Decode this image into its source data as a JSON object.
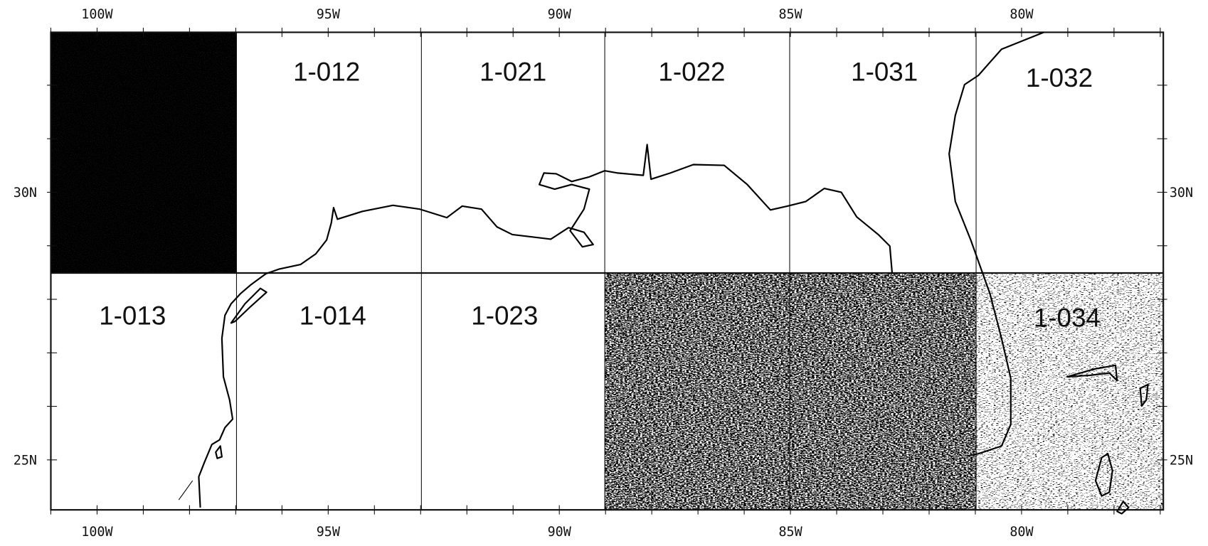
{
  "axes": {
    "top": [
      "100W",
      "95W",
      "90W",
      "85W",
      "80W"
    ],
    "bottom": [
      "100W",
      "95W",
      "90W",
      "85W",
      "80W"
    ],
    "left": [
      "30N",
      "25N"
    ],
    "right": [
      "30N",
      "25N"
    ]
  },
  "cells": [
    {
      "label": "1-012"
    },
    {
      "label": "1-021"
    },
    {
      "label": "1-022"
    },
    {
      "label": "1-031"
    },
    {
      "label": "1-032"
    },
    {
      "label": "1-013"
    },
    {
      "label": "1-014"
    },
    {
      "label": "1-023"
    },
    {
      "label": "1-034"
    }
  ]
}
